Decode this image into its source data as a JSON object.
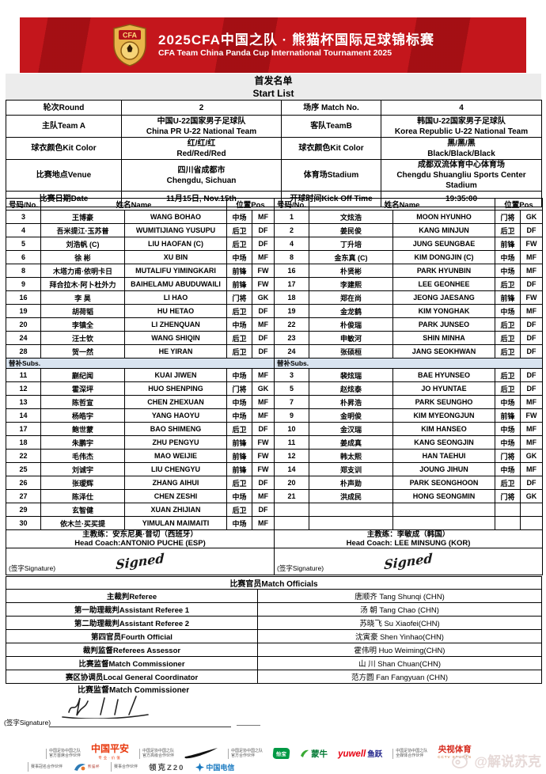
{
  "header": {
    "title_cn": "2025CFA中国之队 · 熊猫杯国际足球锦标赛",
    "title_en": "CFA Team China Panda Cup International Tournament 2025",
    "logo_text": "CFA"
  },
  "start_list": {
    "cn": "首发名单",
    "en": "Start List"
  },
  "match_info": {
    "round_label": "轮次Round",
    "round_value": "2",
    "match_no_label": "场序 Match No.",
    "match_no_value": "4",
    "team_a_label": "主队Team A",
    "team_a_cn": "中国U-22国家男子足球队",
    "team_a_en": "China PR U-22 National Team",
    "team_b_label": "客队TeamB",
    "team_b_cn": "韩国U-22国家男子足球队",
    "team_b_en": "Korea Republic U-22 National Team",
    "kit_a_label": "球衣颜色Kit Color",
    "kit_a_cn": "红/红/红",
    "kit_a_en": "Red/Red/Red",
    "kit_b_label": "球衣颜色Kit Color",
    "kit_b_cn": "黑/黑/黑",
    "kit_b_en": "Black/Black/Black",
    "venue_label": "比赛地点Venue",
    "venue_cn": "四川省成都市",
    "venue_en": "Chengdu, Sichuan",
    "stadium_label": "体育场Stadium",
    "stadium_cn": "成都双流体育中心体育场",
    "stadium_en": "Chengdu Shuangliu Sports Center Stadium",
    "date_label": "比赛日期Date",
    "date_value": "11月15日, Nov.15th",
    "kickoff_label": "开球时间Kick Off Time",
    "kickoff_value": "19:35:00"
  },
  "roster": {
    "col_no": "号码/No.",
    "col_name": "姓名Name",
    "col_pos": "位置Pos",
    "subs_label": "替补Subs.",
    "signature_label": "(签字Signature)",
    "signature_script": "Signed",
    "team_a": {
      "starters": [
        [
          "3",
          "王博豪",
          "WANG BOHAO",
          "中场",
          "MF"
        ],
        [
          "4",
          "吾米提江·玉苏普",
          "WUMITIJIANG YUSUPU",
          "后卫",
          "DF"
        ],
        [
          "5",
          "刘浩帆 (C)",
          "LIU HAOFAN (C)",
          "后卫",
          "DF"
        ],
        [
          "6",
          "徐 彬",
          "XU BIN",
          "中场",
          "MF"
        ],
        [
          "8",
          "木塔力甫·依明卡日",
          "MUTALIFU YIMINGKARI",
          "前锋",
          "FW"
        ],
        [
          "9",
          "拜合拉木·阿卜杜外力",
          "BAIHELAMU ABUDUWAILI",
          "前锋",
          "FW"
        ],
        [
          "16",
          "李 昊",
          "LI HAO",
          "门将",
          "GK"
        ],
        [
          "19",
          "胡荷韬",
          "HU HETAO",
          "后卫",
          "DF"
        ],
        [
          "20",
          "李镇全",
          "LI ZHENQUAN",
          "中场",
          "MF"
        ],
        [
          "24",
          "汪士钦",
          "WANG SHIQIN",
          "后卫",
          "DF"
        ],
        [
          "28",
          "贺一然",
          "HE YIRAN",
          "后卫",
          "DF"
        ]
      ],
      "subs": [
        [
          "11",
          "蒯纪闻",
          "KUAI JIWEN",
          "中场",
          "MF"
        ],
        [
          "12",
          "霍深坪",
          "HUO SHENPING",
          "门将",
          "GK"
        ],
        [
          "13",
          "陈哲宣",
          "CHEN ZHEXUAN",
          "中场",
          "MF"
        ],
        [
          "14",
          "杨皓宇",
          "YANG HAOYU",
          "中场",
          "MF"
        ],
        [
          "17",
          "鲍世蒙",
          "BAO SHIMENG",
          "后卫",
          "DF"
        ],
        [
          "18",
          "朱鹏宇",
          "ZHU PENGYU",
          "前锋",
          "FW"
        ],
        [
          "22",
          "毛伟杰",
          "MAO WEIJIE",
          "前锋",
          "FW"
        ],
        [
          "25",
          "刘诚宇",
          "LIU CHENGYU",
          "前锋",
          "FW"
        ],
        [
          "26",
          "张瑷辉",
          "ZHANG AIHUI",
          "后卫",
          "DF"
        ],
        [
          "27",
          "陈泽仕",
          "CHEN ZESHI",
          "中场",
          "MF"
        ],
        [
          "29",
          "玄智健",
          "XUAN ZHIJIAN",
          "后卫",
          "DF"
        ],
        [
          "30",
          "依木兰·买买提",
          "YIMULAN MAIMAITI",
          "中场",
          "MF"
        ]
      ],
      "empty_rows": 0,
      "coach_cn": "主教练：安东尼奥·普切（西班牙）",
      "coach_en": "Head Coach:ANTONIO PUCHE (ESP)"
    },
    "team_b": {
      "starters": [
        [
          "1",
          "文炫浩",
          "MOON HYUNHO",
          "门将",
          "GK"
        ],
        [
          "2",
          "姜民俊",
          "KANG MINJUN",
          "后卫",
          "DF"
        ],
        [
          "4",
          "丁升培",
          "JUNG SEUNGBAE",
          "前锋",
          "FW"
        ],
        [
          "8",
          "金东真 (C)",
          "KIM DONGJIN (C)",
          "中场",
          "MF"
        ],
        [
          "16",
          "朴贤彬",
          "PARK HYUNBIN",
          "中场",
          "MF"
        ],
        [
          "17",
          "李建熙",
          "LEE GEONHEE",
          "后卫",
          "DF"
        ],
        [
          "18",
          "郑在尚",
          "JEONG JAESANG",
          "前锋",
          "FW"
        ],
        [
          "19",
          "金龙鹤",
          "KIM YONGHAK",
          "中场",
          "MF"
        ],
        [
          "22",
          "朴俊瑞",
          "PARK JUNSEO",
          "后卫",
          "DF"
        ],
        [
          "23",
          "申敏河",
          "SHIN MINHA",
          "后卫",
          "DF"
        ],
        [
          "24",
          "张硕桓",
          "JANG SEOKHWAN",
          "后卫",
          "DF"
        ]
      ],
      "subs": [
        [
          "3",
          "裴炫瑞",
          "BAE HYUNSEO",
          "后卫",
          "DF"
        ],
        [
          "5",
          "赵炫泰",
          "JO HYUNTAE",
          "后卫",
          "DF"
        ],
        [
          "7",
          "朴昇浩",
          "PARK SEUNGHO",
          "中场",
          "MF"
        ],
        [
          "9",
          "金明俊",
          "KIM MYEONGJUN",
          "前锋",
          "FW"
        ],
        [
          "10",
          "金汉瑞",
          "KIM HANSEO",
          "中场",
          "MF"
        ],
        [
          "11",
          "姜成真",
          "KANG SEONGJIN",
          "中场",
          "MF"
        ],
        [
          "12",
          "韩太熙",
          "HAN TAEHUI",
          "门将",
          "GK"
        ],
        [
          "14",
          "郑支训",
          "JOUNG JIHUN",
          "中场",
          "MF"
        ],
        [
          "20",
          "朴声勋",
          "PARK SEONGHOON",
          "后卫",
          "DF"
        ],
        [
          "21",
          "洪成民",
          "HONG SEONGMIN",
          "门将",
          "GK"
        ]
      ],
      "empty_rows": 2,
      "coach_cn": "主教练：李敏成（韩国）",
      "coach_en": "Head Coach: LEE MINSUNG (KOR)"
    }
  },
  "officials": {
    "title": "比赛官员Match Officials",
    "rows": [
      {
        "label": "主裁判Referee",
        "value": "唐顺齐 Tang Shunqi (CHN)"
      },
      {
        "label": "第一助理裁判Assistant Referee 1",
        "value": "汤 朝 Tang Chao (CHN)"
      },
      {
        "label": "第二助理裁判Assistant Referee 2",
        "value": "苏晓飞 Su Xiaofei(CHN)"
      },
      {
        "label": "第四官员Fourth Official",
        "value": "沈寅豪 Shen Yinhao(CHN)"
      },
      {
        "label": "裁判监督Referees Assessor",
        "value": "霍伟明 Huo Weiming(CHN)"
      },
      {
        "label": "比赛监督Match Commissioner",
        "value": "山 川 Shan Chuan(CHN)"
      },
      {
        "label": "赛区协调员Local General Coordinator",
        "value": "范方圆 Fan Fangyuan (CHN)"
      }
    ],
    "commissioner_label": "比赛监督Match Commissioner",
    "signature_label": "(签字Signature)"
  },
  "sponsors": {
    "assoc_line": "中国足协中国之队",
    "chief_label": "官方首席合作伙伴",
    "senior_label": "官方高级合作伙伴",
    "official_label": "官方合作伙伴",
    "media_label": "全媒体合作伙伴",
    "pingan": "中国平安",
    "pingan_sub": "专业·价值",
    "nike_icon_name": "nike-swoosh",
    "cestbon": "怡宝",
    "mengniu": "蒙牛",
    "yuwell_en": "yuwell",
    "yuwell_cn": "鱼跃",
    "cctv": "央视体育",
    "cctv_sub": "CCTV SPORTS",
    "title_partner_label": "赛事冠名合作伙伴",
    "event_partner_label": "赛事合作伙伴",
    "panda_cup_text": "熊猫杯",
    "lynk": "领克Z20",
    "telecom": "中国电信"
  },
  "watermark": "@解说苏克",
  "colors": {
    "banner_red": "#c4161c",
    "subs_bar": "#d9e4f0",
    "startbar_gray": "#ececec"
  }
}
